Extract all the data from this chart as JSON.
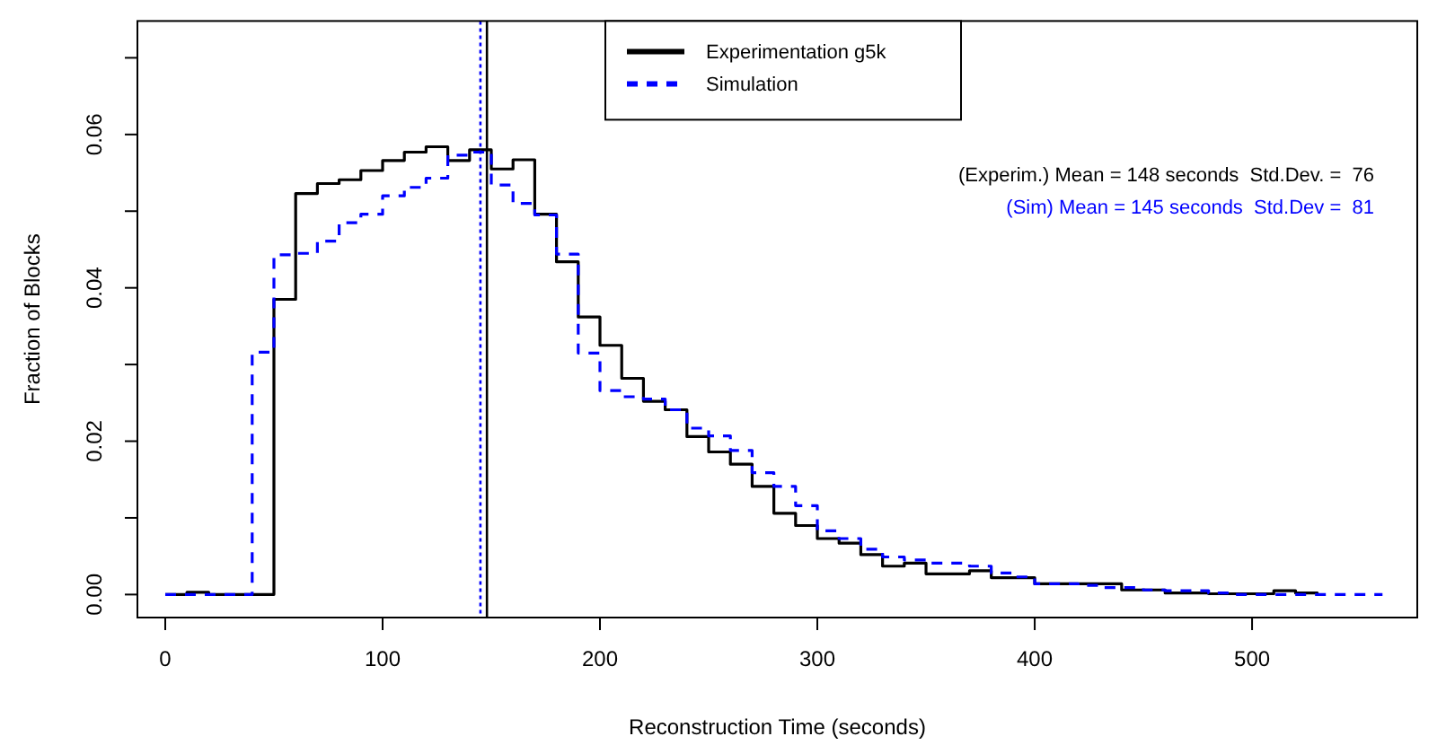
{
  "chart_data": {
    "type": "step",
    "xlabel": "Reconstruction Time (seconds)",
    "ylabel": "Fraction of Blocks",
    "xlim": [
      -12.8,
      576
    ],
    "ylim": [
      -0.003,
      0.0748
    ],
    "xticks": [
      0,
      100,
      200,
      300,
      400,
      500
    ],
    "yticks": [
      {
        "value": 0,
        "label": "0.00"
      },
      {
        "value": 0.01,
        "label": null
      },
      {
        "value": 0.02,
        "label": "0.02"
      },
      {
        "value": 0.03,
        "label": null
      },
      {
        "value": 0.04,
        "label": "0.04"
      },
      {
        "value": 0.05,
        "label": null
      },
      {
        "value": 0.06,
        "label": "0.06"
      },
      {
        "value": 0.07,
        "label": null
      }
    ],
    "grid": false,
    "legend": "top",
    "marker": "none",
    "series": [
      {
        "name": "Experimentation g5k",
        "color": "#000000",
        "line_style": "solid",
        "x": [
          0,
          10,
          20,
          30,
          40,
          50,
          60,
          70,
          80,
          90,
          100,
          110,
          120,
          130,
          140,
          150,
          160,
          170,
          180,
          190,
          200,
          210,
          220,
          230,
          240,
          250,
          260,
          270,
          280,
          290,
          300,
          310,
          320,
          330,
          340,
          350,
          360,
          370,
          380,
          390,
          400,
          410,
          420,
          430,
          440,
          450,
          460,
          470,
          480,
          490,
          500,
          510,
          520,
          530
        ],
        "values": [
          0,
          0.0003,
          0,
          0,
          0,
          0.0385,
          0.0523,
          0.0536,
          0.0541,
          0.0553,
          0.0566,
          0.0577,
          0.0584,
          0.0566,
          0.058,
          0.0555,
          0.0567,
          0.0496,
          0.0434,
          0.0362,
          0.0325,
          0.0282,
          0.0252,
          0.0241,
          0.0206,
          0.0186,
          0.017,
          0.0141,
          0.0106,
          0.009,
          0.0073,
          0.0067,
          0.0052,
          0.0037,
          0.0041,
          0.0027,
          0.0027,
          0.0031,
          0.0022,
          0.0022,
          0.0014,
          0.0014,
          0.0014,
          0.0014,
          0.0006,
          0.0006,
          0.0002,
          0.0002,
          0.0001,
          0.0001,
          0.0001,
          0.0005,
          0.0002,
          0
        ]
      },
      {
        "name": "Simulation",
        "color": "#0000ff",
        "line_style": "dashed",
        "x": [
          0,
          10,
          20,
          30,
          40,
          50,
          60,
          70,
          80,
          90,
          100,
          110,
          120,
          130,
          140,
          150,
          160,
          170,
          180,
          190,
          200,
          210,
          220,
          230,
          240,
          250,
          260,
          270,
          280,
          290,
          300,
          310,
          320,
          330,
          340,
          350,
          360,
          370,
          380,
          390,
          400,
          410,
          420,
          430,
          440,
          450,
          460,
          470,
          480,
          490,
          500,
          510,
          520,
          530,
          540,
          550,
          560
        ],
        "values": [
          0,
          0,
          0,
          0,
          0.0316,
          0.0443,
          0.0445,
          0.0461,
          0.0485,
          0.0496,
          0.052,
          0.0531,
          0.0543,
          0.0573,
          0.0577,
          0.0534,
          0.051,
          0.0495,
          0.0444,
          0.0315,
          0.0266,
          0.0258,
          0.0255,
          0.0241,
          0.0217,
          0.0207,
          0.0188,
          0.0159,
          0.0141,
          0.0116,
          0.0083,
          0.0073,
          0.0059,
          0.0049,
          0.0045,
          0.0041,
          0.0041,
          0.0037,
          0.0028,
          0.0023,
          0.0014,
          0.0014,
          0.0012,
          0.0009,
          0.0009,
          0.0006,
          0.0005,
          0.0005,
          0.0002,
          0,
          0,
          0,
          0,
          0,
          0,
          0,
          0
        ]
      }
    ],
    "ref_lines": [
      {
        "axis": "x",
        "value": 148,
        "color": "#000000",
        "line_style": "solid"
      },
      {
        "axis": "x",
        "value": 145,
        "color": "#0000ff",
        "line_style": "dotted"
      }
    ],
    "annotations": [
      "(Experim.) Mean = 148 seconds  Std.Dev. =  76",
      "(Sim) Mean = 145 seconds  Std.Dev =  81"
    ]
  }
}
